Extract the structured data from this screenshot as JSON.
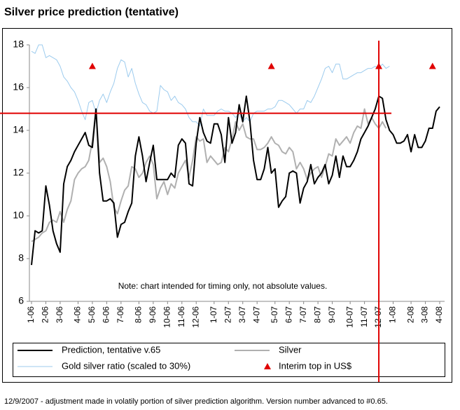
{
  "chart_data": {
    "type": "line",
    "title": "Silver price prediction (tentative)",
    "annotation": "Note: chart intended for timing only, not absolute values.",
    "footnote": "12/9/2007 - adjustment made in volatily portion of silver prediction algorithm. Version number advanced to #0.65.",
    "categories": [
      "1-06",
      null,
      null,
      null,
      "2-06",
      null,
      null,
      null,
      "3-06",
      null,
      null,
      null,
      null,
      "4-06",
      null,
      null,
      null,
      "5-06",
      null,
      null,
      null,
      "6-06",
      null,
      null,
      null,
      "7-06",
      null,
      null,
      null,
      null,
      "8-06",
      null,
      null,
      null,
      "9-06",
      null,
      null,
      null,
      "10-06",
      null,
      null,
      null,
      "11-06",
      null,
      null,
      null,
      "12-06",
      null,
      null,
      null,
      null,
      "1-07",
      null,
      null,
      null,
      "2-07",
      null,
      null,
      null,
      "3-07",
      null,
      null,
      null,
      "4-07",
      null,
      null,
      null,
      null,
      "5-07",
      null,
      null,
      null,
      "6-07",
      null,
      null,
      null,
      "7-07",
      null,
      null,
      null,
      "8-07",
      null,
      null,
      null,
      "9-07",
      null,
      null,
      null,
      null,
      "10-07",
      null,
      null,
      null,
      "11-07",
      null,
      null,
      null,
      "12-07",
      null,
      null,
      null,
      "1-08",
      null,
      null,
      null,
      null,
      "2-08",
      null,
      null,
      null,
      "3-08",
      null,
      null,
      null,
      "4-08"
    ],
    "series": [
      {
        "name": "Prediction, tentative v.65",
        "color": "#000000",
        "kind": "line",
        "width": 2,
        "values": [
          7.7,
          9.3,
          9.2,
          9.3,
          11.4,
          10.5,
          9.3,
          8.7,
          8.3,
          11.5,
          12.3,
          12.6,
          13.0,
          13.3,
          13.6,
          13.9,
          13.3,
          13.2,
          15.0,
          12.0,
          10.7,
          10.7,
          10.8,
          10.6,
          9.0,
          9.6,
          9.7,
          10.2,
          10.6,
          12.8,
          13.7,
          12.8,
          11.6,
          12.5,
          13.3,
          11.7,
          11.7,
          11.7,
          11.7,
          12.0,
          11.8,
          13.3,
          13.6,
          13.4,
          11.5,
          11.4,
          13.4,
          14.6,
          13.9,
          13.5,
          13.4,
          14.3,
          14.3,
          13.8,
          12.5,
          14.6,
          13.4,
          13.9,
          15.2,
          14.4,
          15.6,
          14.4,
          12.6,
          11.7,
          11.7,
          12.2,
          13.2,
          12.0,
          12.2,
          10.4,
          10.7,
          10.9,
          12.0,
          12.1,
          12.0,
          10.6,
          11.3,
          11.6,
          12.4,
          11.5,
          11.8,
          12.0,
          12.4,
          11.5,
          11.9,
          12.8,
          11.8,
          12.8,
          12.3,
          12.3,
          12.6,
          13.0,
          13.6,
          13.9,
          14.2,
          14.6,
          15.0,
          15.6,
          15.5,
          14.5,
          14.0,
          13.8,
          13.4,
          13.4,
          13.5,
          13.8,
          13.0,
          13.8,
          13.2,
          13.2,
          13.5,
          14.1,
          14.1,
          14.9,
          15.1
        ]
      },
      {
        "name": "Silver",
        "color": "#b0b0b0",
        "kind": "line",
        "width": 2,
        "values": [
          8.8,
          8.9,
          9.0,
          9.2,
          9.3,
          9.7,
          9.8,
          9.7,
          10.2,
          9.7,
          10.3,
          10.7,
          11.7,
          12.0,
          12.2,
          12.3,
          12.6,
          13.5,
          15.0,
          12.5,
          12.7,
          12.3,
          11.6,
          10.4,
          10.1,
          10.7,
          11.2,
          11.4,
          12.3,
          12.2,
          11.8,
          12.0,
          12.5,
          12.8,
          12.4,
          10.8,
          11.3,
          11.6,
          11.0,
          11.5,
          11.3,
          12.0,
          12.3,
          12.6,
          11.8,
          12.6,
          13.7,
          13.5,
          13.6,
          12.5,
          12.8,
          12.6,
          12.4,
          12.5,
          13.2,
          13.0,
          13.6,
          14.4,
          14.0,
          14.3,
          13.7,
          13.6,
          13.6,
          13.1,
          13.1,
          13.2,
          13.4,
          13.7,
          13.4,
          13.3,
          13.0,
          12.9,
          13.2,
          13.0,
          12.2,
          12.5,
          12.2,
          11.7,
          12.0,
          12.2,
          12.3,
          11.8,
          12.3,
          12.9,
          12.8,
          13.6,
          13.3,
          13.5,
          13.7,
          13.4,
          13.9,
          14.2,
          14.1,
          15.0,
          14.3,
          14.6,
          14.3,
          14.1,
          14.4,
          14.1,
          null,
          null,
          null,
          null,
          null,
          null,
          null,
          null,
          null,
          null,
          null,
          null,
          null,
          null,
          null
        ]
      },
      {
        "name": "Gold silver ratio (scaled to 30%)",
        "color": "#9ccbee",
        "kind": "line",
        "width": 1,
        "values": [
          17.7,
          17.6,
          18.0,
          18.0,
          17.4,
          17.5,
          17.4,
          17.3,
          17.0,
          16.5,
          16.3,
          16.0,
          15.8,
          15.4,
          14.9,
          14.5,
          15.3,
          15.4,
          14.8,
          15.4,
          15.7,
          15.3,
          15.8,
          16.2,
          16.9,
          17.3,
          17.2,
          16.5,
          16.9,
          16.2,
          15.7,
          15.3,
          15.2,
          14.9,
          14.8,
          14.9,
          16.1,
          15.9,
          15.8,
          15.4,
          15.6,
          15.3,
          15.2,
          15.0,
          14.6,
          14.4,
          14.4,
          14.2,
          15.0,
          14.7,
          14.7,
          14.7,
          14.9,
          15.0,
          14.9,
          14.9,
          14.8,
          14.6,
          14.8,
          14.4,
          14.6,
          14.4,
          14.8,
          14.9,
          14.9,
          14.9,
          15.0,
          15.0,
          15.1,
          15.4,
          15.4,
          15.3,
          15.2,
          15.0,
          14.8,
          15.0,
          15.0,
          15.4,
          15.3,
          15.6,
          16.0,
          16.4,
          16.9,
          17.0,
          16.7,
          17.1,
          17.1,
          16.4,
          16.4,
          16.5,
          16.6,
          16.7,
          16.7,
          16.8,
          16.9,
          16.9,
          17.0,
          16.9,
          17.1,
          16.9,
          17.0,
          null,
          null,
          null,
          null,
          null,
          null,
          null,
          null,
          null,
          null,
          null,
          null,
          null,
          null
        ]
      },
      {
        "name": "Interim top in US$",
        "color": "#e00000",
        "kind": "triangle",
        "values": [
          null,
          null,
          null,
          null,
          null,
          null,
          null,
          null,
          null,
          null,
          null,
          null,
          null,
          null,
          null,
          null,
          null,
          17,
          null,
          null,
          null,
          null,
          null,
          null,
          null,
          null,
          null,
          null,
          null,
          null,
          null,
          null,
          null,
          null,
          null,
          null,
          null,
          null,
          null,
          null,
          null,
          null,
          null,
          null,
          null,
          null,
          null,
          null,
          null,
          null,
          null,
          null,
          null,
          null,
          null,
          null,
          null,
          null,
          null,
          null,
          null,
          null,
          null,
          null,
          null,
          null,
          null,
          17,
          null,
          null,
          null,
          null,
          null,
          null,
          null,
          null,
          null,
          null,
          null,
          null,
          null,
          null,
          null,
          null,
          null,
          null,
          null,
          null,
          null,
          null,
          null,
          null,
          null,
          null,
          null,
          null,
          null,
          17,
          null,
          null,
          null,
          null,
          null,
          null,
          null,
          null,
          null,
          null,
          null,
          null,
          null,
          null,
          17,
          null,
          null
        ]
      }
    ],
    "ylim": [
      6,
      18
    ],
    "yticks": [
      6,
      8,
      10,
      12,
      14,
      16,
      18
    ],
    "reference_lines": [
      {
        "axis": "y",
        "value": 14.8,
        "color": "#e00000"
      },
      {
        "axis": "x",
        "value": 97,
        "color": "#e00000"
      }
    ]
  }
}
